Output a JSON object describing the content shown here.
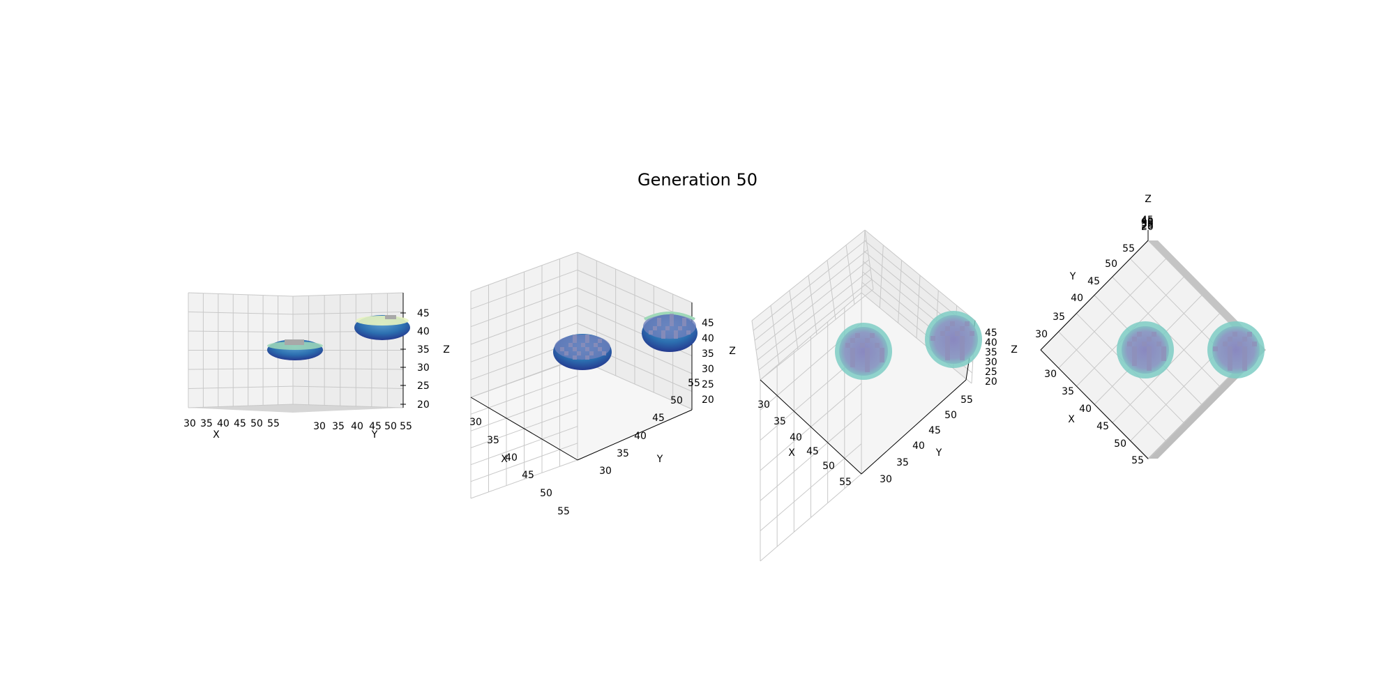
{
  "figure_title": "Generation 50",
  "colors": {
    "pane": "#f2f2f2",
    "pane_dark": "#e6e6e6",
    "grid": "#c8c8c8",
    "blob_dark": "#22449a",
    "blob_mid": "#2c7fb8",
    "blob_light": "#9fd8b8",
    "blob_top": "#e8f4c0",
    "halo": "#7ecdc4",
    "voxel_grey": "#8f8fb8"
  },
  "chart_data": [
    {
      "type": "scatter",
      "subtype": "3d-voxel",
      "view": "side",
      "xlabel": "X",
      "ylabel": "Y",
      "zlabel": "Z",
      "xticks": [
        "30",
        "35",
        "40",
        "45",
        "50",
        "55"
      ],
      "yticks": [
        "30",
        "35",
        "40",
        "45",
        "50",
        "55"
      ],
      "zticks": [
        "20",
        "25",
        "30",
        "35",
        "40",
        "45"
      ],
      "xlim": [
        30,
        55
      ],
      "ylim": [
        30,
        55
      ],
      "zlim": [
        20,
        47
      ],
      "grid": true,
      "blobs": [
        {
          "x": 42,
          "y": 42,
          "z": 35,
          "radius": 5
        },
        {
          "x": 56,
          "y": 56,
          "z": 40,
          "radius": 5
        }
      ]
    },
    {
      "type": "scatter",
      "subtype": "3d-voxel",
      "view": "default-iso",
      "xlabel": "X",
      "ylabel": "Y",
      "zlabel": "Z",
      "xticks": [
        "30",
        "35",
        "40",
        "45",
        "50",
        "55"
      ],
      "yticks": [
        "30",
        "35",
        "40",
        "45",
        "50",
        "55"
      ],
      "zticks": [
        "20",
        "25",
        "30",
        "35",
        "40",
        "45"
      ],
      "xlim": [
        30,
        55
      ],
      "ylim": [
        30,
        55
      ],
      "zlim": [
        20,
        47
      ],
      "grid": true,
      "blobs": [
        {
          "x": 42,
          "y": 42,
          "z": 35,
          "radius": 5
        },
        {
          "x": 56,
          "y": 56,
          "z": 40,
          "radius": 5
        }
      ]
    },
    {
      "type": "scatter",
      "subtype": "3d-voxel",
      "view": "high-iso",
      "xlabel": "X",
      "ylabel": "Y",
      "zlabel": "Z",
      "xticks": [
        "30",
        "35",
        "40",
        "45",
        "50",
        "55"
      ],
      "yticks": [
        "30",
        "35",
        "40",
        "45",
        "50",
        "55"
      ],
      "zticks": [
        "20",
        "25",
        "30",
        "35",
        "40",
        "45"
      ],
      "xlim": [
        30,
        55
      ],
      "ylim": [
        30,
        55
      ],
      "zlim": [
        20,
        47
      ],
      "grid": true,
      "blobs": [
        {
          "x": 42,
          "y": 42,
          "z": 35,
          "radius": 5
        },
        {
          "x": 56,
          "y": 56,
          "z": 40,
          "radius": 5
        }
      ]
    },
    {
      "type": "scatter",
      "subtype": "3d-voxel",
      "view": "top-down",
      "xlabel": "X",
      "ylabel": "Y",
      "zlabel": "Z",
      "xticks": [
        "30",
        "35",
        "40",
        "45",
        "50",
        "55"
      ],
      "yticks": [
        "30",
        "35",
        "40",
        "45",
        "50",
        "55"
      ],
      "zticks": [
        "20",
        "25",
        "30",
        "35",
        "40",
        "45"
      ],
      "xlim": [
        30,
        55
      ],
      "ylim": [
        30,
        55
      ],
      "zlim": [
        20,
        47
      ],
      "grid": true,
      "blobs": [
        {
          "x": 42,
          "y": 42,
          "z": 35,
          "radius": 5
        },
        {
          "x": 56,
          "y": 56,
          "z": 40,
          "radius": 5
        }
      ]
    }
  ]
}
